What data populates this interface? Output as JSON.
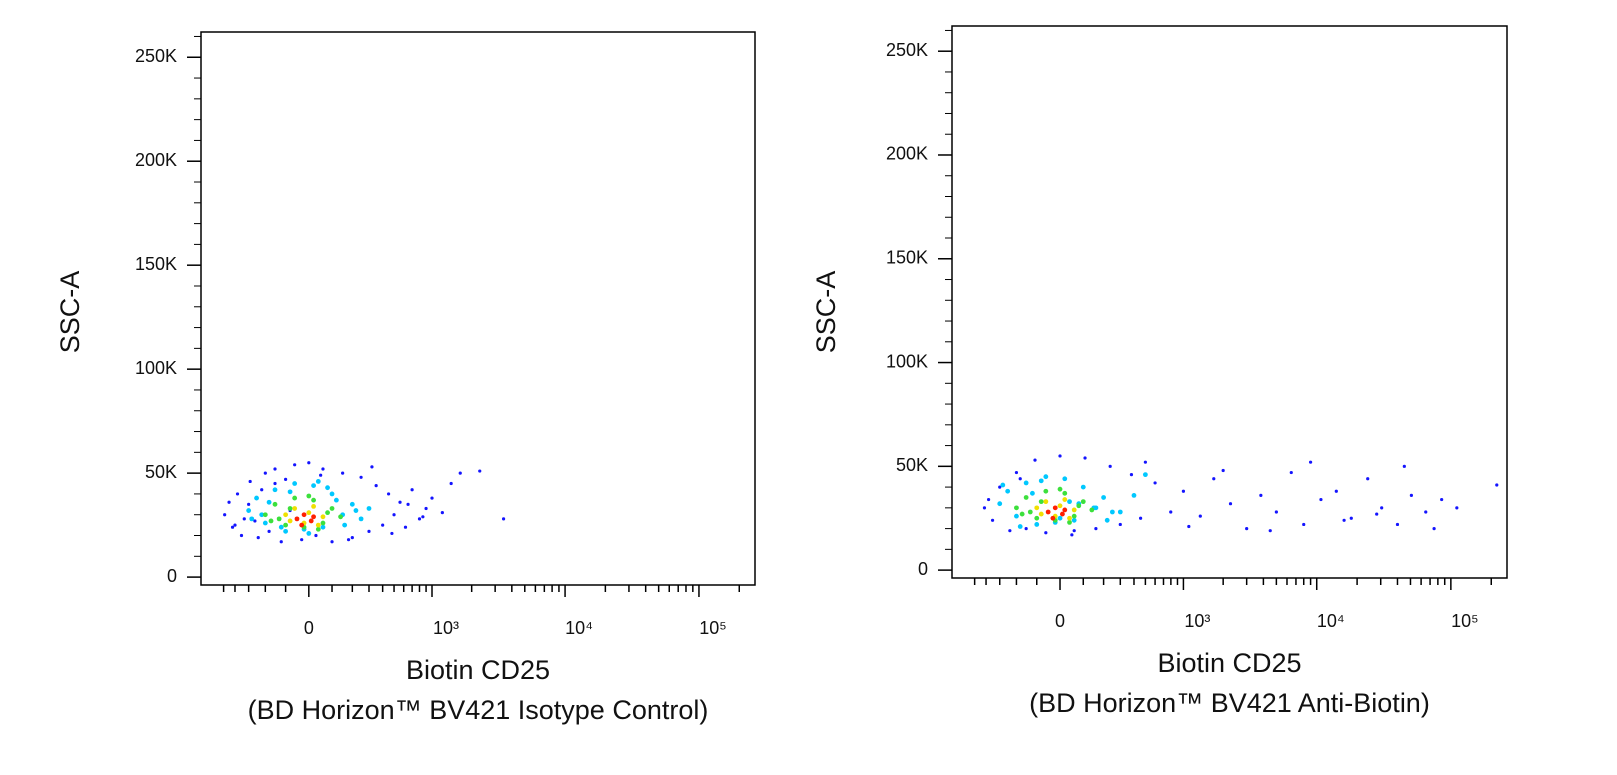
{
  "chart_data": [
    {
      "type": "scatter",
      "xscale": "biexponential",
      "ylabel": "SSC-A",
      "xlabel": [
        "Biotin CD25",
        "(BD Horizon™ BV421 Isotype Control)"
      ],
      "xlim": [
        -760,
        262144
      ],
      "ylim": [
        -3800,
        262144
      ],
      "xticks": [
        0,
        {
          "value": 1000,
          "label": "10³"
        },
        {
          "value": 10000,
          "label": "10⁴"
        },
        {
          "value": 100000,
          "label": "10⁵"
        }
      ],
      "xminorticks": [
        -500,
        -400,
        -300,
        -200,
        -100,
        100,
        200,
        300,
        400,
        500,
        600,
        700,
        800,
        900,
        2000,
        3000,
        4000,
        5000,
        6000,
        7000,
        8000,
        9000,
        20000,
        30000,
        40000,
        50000,
        60000,
        70000,
        80000,
        90000,
        200000
      ],
      "yticks": [
        {
          "value": 0,
          "label": "0"
        },
        {
          "value": 50000,
          "label": "50K"
        },
        {
          "value": 100000,
          "label": "100K"
        },
        {
          "value": 150000,
          "label": "150K"
        },
        {
          "value": 200000,
          "label": "200K"
        },
        {
          "value": 250000,
          "label": "250K"
        }
      ],
      "yminorticks": [
        10000,
        20000,
        30000,
        40000,
        60000,
        70000,
        80000,
        90000,
        110000,
        120000,
        130000,
        140000,
        160000,
        170000,
        180000,
        190000,
        210000,
        220000,
        230000,
        240000,
        260000
      ],
      "series": [
        {
          "color": "#1414ff",
          "x": [
            -490,
            -420,
            -380,
            -350,
            -300,
            -290,
            -260,
            -240,
            -200,
            -180,
            -150,
            -120,
            -100,
            -60,
            -30,
            0,
            30,
            60,
            100,
            150,
            200,
            250,
            300,
            350,
            400,
            450,
            500,
            560,
            620,
            700,
            800,
            900,
            1000,
            1200,
            1400,
            1640,
            2300,
            3470,
            -450,
            -330,
            -220,
            -80,
            50,
            180,
            320,
            480,
            650,
            850,
            -400,
            -150
          ],
          "y": [
            30000,
            24000,
            40000,
            20000,
            35000,
            46000,
            27000,
            19000,
            50000,
            22000,
            52000,
            17000,
            47000,
            54000,
            18000,
            55000,
            20000,
            52000,
            17000,
            50000,
            19000,
            48000,
            22000,
            44000,
            25000,
            40000,
            30000,
            36000,
            24000,
            42000,
            28000,
            33000,
            38000,
            31000,
            45000,
            50000,
            51000,
            28000,
            36000,
            28000,
            42000,
            32000,
            49000,
            18000,
            53000,
            21000,
            35000,
            29000,
            25000,
            45000
          ]
        },
        {
          "color": "#00c8ff",
          "x": [
            -300,
            -250,
            -200,
            -150,
            -100,
            -60,
            -20,
            20,
            60,
            100,
            150,
            200,
            250,
            -280,
            -180,
            -80,
            0,
            80,
            160,
            220,
            -220,
            -120,
            40,
            120,
            300
          ],
          "y": [
            32000,
            38000,
            26000,
            42000,
            22000,
            45000,
            23000,
            44000,
            24000,
            40000,
            30000,
            35000,
            28000,
            28000,
            36000,
            41000,
            21000,
            43000,
            25000,
            32000,
            30000,
            24000,
            46000,
            37000,
            33000
          ]
        },
        {
          "color": "#3ce03c",
          "x": [
            -200,
            -150,
            -100,
            -60,
            -20,
            20,
            60,
            100,
            140,
            -170,
            -80,
            0,
            80,
            -130,
            40
          ],
          "y": [
            30000,
            35000,
            25000,
            38000,
            24000,
            37000,
            26000,
            33000,
            29000,
            27000,
            33000,
            39000,
            31000,
            28000,
            23000
          ]
        },
        {
          "color": "#f0e000",
          "x": [
            -100,
            -60,
            -20,
            20,
            60,
            -80,
            0,
            40
          ],
          "y": [
            30000,
            33000,
            26000,
            34000,
            29000,
            27000,
            31000,
            25000
          ]
        },
        {
          "color": "#ff2000",
          "x": [
            -50,
            -20,
            10,
            -30,
            20
          ],
          "y": [
            28000,
            30000,
            27000,
            25000,
            29000
          ]
        }
      ]
    },
    {
      "type": "scatter",
      "xscale": "biexponential",
      "ylabel": "SSC-A",
      "xlabel": [
        "Biotin CD25",
        "(BD Horizon™ BV421 Anti-Biotin)"
      ],
      "xlim": [
        -760,
        262144
      ],
      "ylim": [
        -3800,
        262144
      ],
      "xticks": [
        0,
        {
          "value": 1000,
          "label": "10³"
        },
        {
          "value": 10000,
          "label": "10⁴"
        },
        {
          "value": 100000,
          "label": "10⁵"
        }
      ],
      "xminorticks": [
        -500,
        -400,
        -300,
        -200,
        -100,
        100,
        200,
        300,
        400,
        500,
        600,
        700,
        800,
        900,
        2000,
        3000,
        4000,
        5000,
        6000,
        7000,
        8000,
        9000,
        20000,
        30000,
        40000,
        50000,
        60000,
        70000,
        80000,
        90000,
        200000
      ],
      "yticks": [
        {
          "value": 0,
          "label": "0"
        },
        {
          "value": 50000,
          "label": "50K"
        },
        {
          "value": 100000,
          "label": "100K"
        },
        {
          "value": 150000,
          "label": "150K"
        },
        {
          "value": 200000,
          "label": "200K"
        },
        {
          "value": 250000,
          "label": "250K"
        }
      ],
      "yminorticks": [
        10000,
        20000,
        30000,
        40000,
        60000,
        70000,
        80000,
        90000,
        110000,
        120000,
        130000,
        140000,
        160000,
        170000,
        180000,
        190000,
        210000,
        220000,
        230000,
        240000,
        260000
      ],
      "series": [
        {
          "color": "#1414ff",
          "x": [
            -413,
            -350,
            -300,
            -237,
            -200,
            -150,
            -108,
            -60,
            0,
            60,
            108,
            160,
            237,
            300,
            380,
            456,
            600,
            798,
            1000,
            1345,
            1700,
            2270,
            3000,
            3830,
            5000,
            6460,
            8000,
            10750,
            14000,
            18100,
            24000,
            30500,
            40000,
            50800,
            65000,
            85400,
            110800,
            220000,
            -380,
            -180,
            50,
            500,
            1100,
            2000,
            4500,
            9000,
            16000,
            28000,
            45000,
            75000
          ],
          "y": [
            30000,
            24000,
            40000,
            19000,
            47000,
            20000,
            53000,
            18000,
            55000,
            19000,
            54000,
            20000,
            50000,
            22000,
            46000,
            25000,
            42000,
            28000,
            38000,
            26000,
            44000,
            32000,
            20000,
            36000,
            28000,
            47000,
            22000,
            34000,
            38000,
            25000,
            44000,
            30000,
            22000,
            36000,
            28000,
            34000,
            30000,
            41000,
            34000,
            44000,
            17000,
            52000,
            21000,
            48000,
            19000,
            52000,
            24000,
            27000,
            50000,
            20000
          ]
        },
        {
          "color": "#00c8ff",
          "x": [
            -300,
            -250,
            -200,
            -150,
            -100,
            -60,
            -20,
            20,
            60,
            100,
            150,
            200,
            250,
            300,
            400,
            -280,
            -180,
            -80,
            0,
            80,
            160,
            220,
            500,
            -120,
            40
          ],
          "y": [
            32000,
            38000,
            26000,
            42000,
            22000,
            45000,
            23000,
            44000,
            24000,
            40000,
            30000,
            35000,
            28000,
            28000,
            36000,
            41000,
            21000,
            43000,
            25000,
            32000,
            30000,
            24000,
            46000,
            37000,
            33000
          ]
        },
        {
          "color": "#3ce03c",
          "x": [
            -200,
            -150,
            -100,
            -60,
            -20,
            20,
            60,
            100,
            140,
            -170,
            -80,
            0,
            80,
            -130,
            40
          ],
          "y": [
            30000,
            35000,
            25000,
            38000,
            24000,
            37000,
            26000,
            33000,
            29000,
            27000,
            33000,
            39000,
            31000,
            28000,
            23000
          ]
        },
        {
          "color": "#f0e000",
          "x": [
            -100,
            -60,
            -20,
            20,
            60,
            -80,
            0,
            40
          ],
          "y": [
            30000,
            33000,
            26000,
            34000,
            29000,
            27000,
            31000,
            25000
          ]
        },
        {
          "color": "#ff2000",
          "x": [
            -50,
            -20,
            10,
            -30,
            20
          ],
          "y": [
            28000,
            30000,
            27000,
            25000,
            29000
          ]
        }
      ]
    }
  ]
}
